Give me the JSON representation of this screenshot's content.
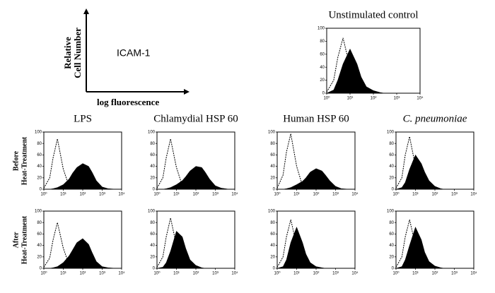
{
  "legend_panel": {
    "y_label_1": "Relative",
    "y_label_2": "Cell Number",
    "x_label": "log fluorescence",
    "marker": "ICAM-1"
  },
  "row_labels": [
    [
      "Before",
      "Heat-Treatment"
    ],
    [
      "After",
      "Heat-Treatment"
    ]
  ],
  "chart_data": [
    {
      "type": "area",
      "title": "Unstimulated control",
      "log_x": true,
      "xlim": [
        1,
        10000
      ],
      "ylim": [
        0,
        100
      ],
      "xticks": [
        {
          "value": 1,
          "label": "10⁰"
        },
        {
          "value": 10,
          "label": "10¹"
        },
        {
          "value": 100,
          "label": "10²"
        },
        {
          "value": 1000,
          "label": "10³"
        },
        {
          "value": 10000,
          "label": "10⁴"
        }
      ],
      "yticks": [
        0,
        20,
        40,
        60,
        80,
        100
      ],
      "x": [
        1,
        2,
        3,
        5,
        10,
        20,
        30,
        50,
        100,
        200,
        300,
        500,
        1000,
        2000,
        5000,
        10000
      ],
      "series": [
        {
          "style": "dashed",
          "color": "#000000",
          "values": [
            2,
            20,
            55,
            85,
            40,
            10,
            3,
            1,
            0,
            0,
            0,
            0,
            0,
            0,
            0,
            0
          ]
        },
        {
          "style": "filled",
          "color": "#000000",
          "values": [
            0,
            5,
            20,
            45,
            68,
            45,
            25,
            10,
            4,
            1,
            0,
            0,
            0,
            0,
            0,
            0
          ]
        }
      ]
    },
    {
      "type": "area",
      "title": "LPS",
      "log_x": true,
      "xlim": [
        1,
        10000
      ],
      "ylim": [
        0,
        100
      ],
      "xticks": [
        {
          "value": 1,
          "label": "10⁰"
        },
        {
          "value": 10,
          "label": "10¹"
        },
        {
          "value": 100,
          "label": "10²"
        },
        {
          "value": 1000,
          "label": "10³"
        },
        {
          "value": 10000,
          "label": "10⁴"
        }
      ],
      "yticks": [
        0,
        20,
        40,
        60,
        80,
        100
      ],
      "x": [
        1,
        2,
        3,
        5,
        10,
        20,
        30,
        50,
        100,
        200,
        300,
        500,
        1000,
        2000,
        5000,
        10000
      ],
      "series": [
        {
          "style": "dashed",
          "color": "#000000",
          "values": [
            2,
            20,
            55,
            88,
            35,
            5,
            1,
            0,
            0,
            0,
            0,
            0,
            0,
            0,
            0,
            0
          ]
        },
        {
          "style": "filled",
          "color": "#000000",
          "values": [
            0,
            0,
            1,
            3,
            8,
            18,
            28,
            38,
            45,
            40,
            30,
            15,
            4,
            1,
            0,
            0
          ]
        }
      ]
    },
    {
      "type": "area",
      "title": "Chlamydial HSP 60",
      "log_x": true,
      "xlim": [
        1,
        10000
      ],
      "ylim": [
        0,
        100
      ],
      "xticks": [
        {
          "value": 1,
          "label": "10⁰"
        },
        {
          "value": 10,
          "label": "10¹"
        },
        {
          "value": 100,
          "label": "10²"
        },
        {
          "value": 1000,
          "label": "10³"
        },
        {
          "value": 10000,
          "label": "10⁴"
        }
      ],
      "yticks": [
        0,
        20,
        40,
        60,
        80,
        100
      ],
      "x": [
        1,
        2,
        3,
        5,
        10,
        20,
        30,
        50,
        100,
        200,
        300,
        500,
        1000,
        2000,
        5000,
        10000
      ],
      "series": [
        {
          "style": "dashed",
          "color": "#000000",
          "values": [
            2,
            20,
            55,
            88,
            38,
            6,
            1,
            0,
            0,
            0,
            0,
            0,
            0,
            0,
            0,
            0
          ]
        },
        {
          "style": "filled",
          "color": "#000000",
          "values": [
            0,
            0,
            1,
            3,
            8,
            15,
            22,
            32,
            40,
            38,
            30,
            18,
            6,
            2,
            0,
            0
          ]
        }
      ]
    },
    {
      "type": "area",
      "title": "Human HSP 60",
      "log_x": true,
      "xlim": [
        1,
        10000
      ],
      "ylim": [
        0,
        100
      ],
      "xticks": [
        {
          "value": 1,
          "label": "10⁰"
        },
        {
          "value": 10,
          "label": "10¹"
        },
        {
          "value": 100,
          "label": "10²"
        },
        {
          "value": 1000,
          "label": "10³"
        },
        {
          "value": 10000,
          "label": "10⁴"
        }
      ],
      "yticks": [
        0,
        20,
        40,
        60,
        80,
        100
      ],
      "x": [
        1,
        2,
        3,
        5,
        10,
        20,
        30,
        50,
        100,
        200,
        300,
        500,
        1000,
        2000,
        5000,
        10000
      ],
      "series": [
        {
          "style": "dashed",
          "color": "#000000",
          "values": [
            2,
            25,
            65,
            97,
            40,
            6,
            1,
            0,
            0,
            0,
            0,
            0,
            0,
            0,
            0,
            0
          ]
        },
        {
          "style": "filled",
          "color": "#000000",
          "values": [
            0,
            0,
            1,
            3,
            8,
            14,
            20,
            30,
            36,
            32,
            25,
            15,
            5,
            1,
            0,
            0
          ]
        }
      ]
    },
    {
      "type": "area",
      "title": "C. pneumoniae",
      "title_style": "italic",
      "log_x": true,
      "xlim": [
        1,
        10000
      ],
      "ylim": [
        0,
        100
      ],
      "xticks": [
        {
          "value": 1,
          "label": "10⁰"
        },
        {
          "value": 10,
          "label": "10¹"
        },
        {
          "value": 100,
          "label": "10²"
        },
        {
          "value": 1000,
          "label": "10³"
        },
        {
          "value": 10000,
          "label": "10⁴"
        }
      ],
      "yticks": [
        0,
        20,
        40,
        60,
        80,
        100
      ],
      "x": [
        1,
        2,
        3,
        5,
        10,
        20,
        30,
        50,
        100,
        200,
        300,
        500,
        1000,
        2000,
        5000,
        10000
      ],
      "series": [
        {
          "style": "dashed",
          "color": "#000000",
          "values": [
            2,
            20,
            60,
            92,
            40,
            8,
            1,
            0,
            0,
            0,
            0,
            0,
            0,
            0,
            0,
            0
          ]
        },
        {
          "style": "filled",
          "color": "#000000",
          "values": [
            0,
            3,
            12,
            35,
            60,
            45,
            30,
            15,
            5,
            1,
            0,
            0,
            0,
            0,
            0,
            0
          ]
        }
      ]
    },
    {
      "type": "area",
      "log_x": true,
      "xlim": [
        1,
        10000
      ],
      "ylim": [
        0,
        100
      ],
      "xticks": [
        {
          "value": 1,
          "label": "10⁰"
        },
        {
          "value": 10,
          "label": "10¹"
        },
        {
          "value": 100,
          "label": "10²"
        },
        {
          "value": 1000,
          "label": "10³"
        },
        {
          "value": 10000,
          "label": "10⁴"
        }
      ],
      "yticks": [
        0,
        20,
        40,
        60,
        80,
        100
      ],
      "x": [
        1,
        2,
        3,
        5,
        10,
        20,
        30,
        50,
        100,
        200,
        300,
        500,
        1000,
        2000,
        5000,
        10000
      ],
      "series": [
        {
          "style": "dashed",
          "color": "#000000",
          "values": [
            2,
            18,
            50,
            80,
            35,
            6,
            1,
            0,
            0,
            0,
            0,
            0,
            0,
            0,
            0,
            0
          ]
        },
        {
          "style": "filled",
          "color": "#000000",
          "values": [
            0,
            0,
            1,
            3,
            10,
            22,
            32,
            45,
            52,
            42,
            28,
            12,
            3,
            1,
            0,
            0
          ]
        }
      ]
    },
    {
      "type": "area",
      "log_x": true,
      "xlim": [
        1,
        10000
      ],
      "ylim": [
        0,
        100
      ],
      "xticks": [
        {
          "value": 1,
          "label": "10⁰"
        },
        {
          "value": 10,
          "label": "10¹"
        },
        {
          "value": 100,
          "label": "10²"
        },
        {
          "value": 1000,
          "label": "10³"
        },
        {
          "value": 10000,
          "label": "10⁴"
        }
      ],
      "yticks": [
        0,
        20,
        40,
        60,
        80,
        100
      ],
      "x": [
        1,
        2,
        3,
        5,
        10,
        20,
        30,
        50,
        100,
        200,
        300,
        500,
        1000,
        2000,
        5000,
        10000
      ],
      "series": [
        {
          "style": "dashed",
          "color": "#000000",
          "values": [
            2,
            20,
            55,
            88,
            40,
            8,
            1,
            0,
            0,
            0,
            0,
            0,
            0,
            0,
            0,
            0
          ]
        },
        {
          "style": "filled",
          "color": "#000000",
          "values": [
            0,
            2,
            10,
            30,
            65,
            55,
            35,
            15,
            5,
            1,
            0,
            0,
            0,
            0,
            0,
            0
          ]
        }
      ]
    },
    {
      "type": "area",
      "log_x": true,
      "xlim": [
        1,
        10000
      ],
      "ylim": [
        0,
        100
      ],
      "xticks": [
        {
          "value": 1,
          "label": "10⁰"
        },
        {
          "value": 10,
          "label": "10¹"
        },
        {
          "value": 100,
          "label": "10²"
        },
        {
          "value": 1000,
          "label": "10³"
        },
        {
          "value": 10000,
          "label": "10⁴"
        }
      ],
      "yticks": [
        0,
        20,
        40,
        60,
        80,
        100
      ],
      "x": [
        1,
        2,
        3,
        5,
        10,
        20,
        30,
        50,
        100,
        200,
        300,
        500,
        1000,
        2000,
        5000,
        10000
      ],
      "series": [
        {
          "style": "dashed",
          "color": "#000000",
          "values": [
            2,
            20,
            55,
            85,
            40,
            8,
            1,
            0,
            0,
            0,
            0,
            0,
            0,
            0,
            0,
            0
          ]
        },
        {
          "style": "filled",
          "color": "#000000",
          "values": [
            0,
            3,
            15,
            45,
            72,
            45,
            25,
            10,
            3,
            1,
            0,
            0,
            0,
            0,
            0,
            0
          ]
        }
      ]
    },
    {
      "type": "area",
      "log_x": true,
      "xlim": [
        1,
        10000
      ],
      "ylim": [
        0,
        100
      ],
      "xticks": [
        {
          "value": 1,
          "label": "10⁰"
        },
        {
          "value": 10,
          "label": "10¹"
        },
        {
          "value": 100,
          "label": "10²"
        },
        {
          "value": 1000,
          "label": "10³"
        },
        {
          "value": 10000,
          "label": "10⁴"
        }
      ],
      "yticks": [
        0,
        20,
        40,
        60,
        80,
        100
      ],
      "x": [
        1,
        2,
        3,
        5,
        10,
        20,
        30,
        50,
        100,
        200,
        300,
        500,
        1000,
        2000,
        5000,
        10000
      ],
      "series": [
        {
          "style": "dashed",
          "color": "#000000",
          "values": [
            2,
            20,
            55,
            85,
            40,
            8,
            1,
            0,
            0,
            0,
            0,
            0,
            0,
            0,
            0,
            0
          ]
        },
        {
          "style": "filled",
          "color": "#000000",
          "values": [
            0,
            3,
            15,
            40,
            72,
            50,
            28,
            12,
            4,
            1,
            0,
            0,
            0,
            0,
            0,
            0
          ]
        }
      ]
    }
  ]
}
